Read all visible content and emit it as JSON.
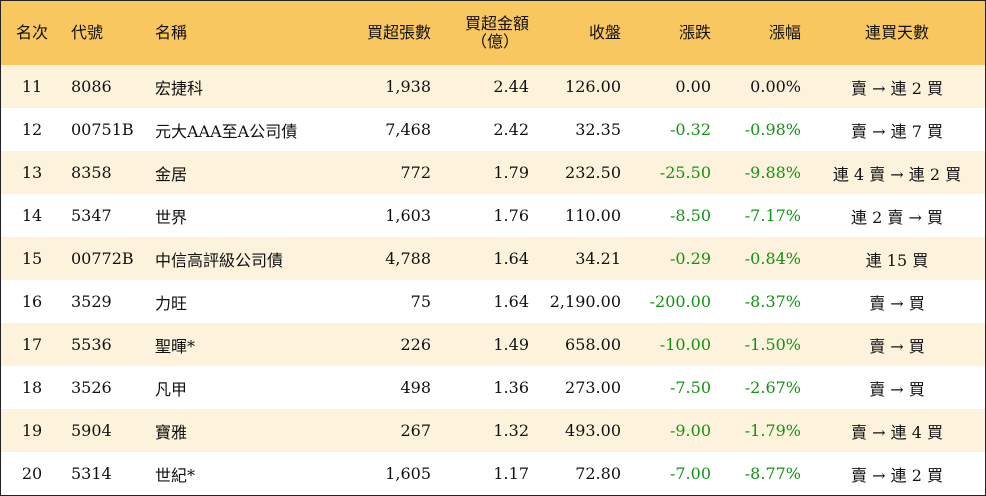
{
  "headers": {
    "rank": "名次",
    "code": "代號",
    "name": "名稱",
    "net_buy_lots": "買超張數",
    "net_buy_amount_line1": "買超金額",
    "net_buy_amount_line2": "（億）",
    "close": "收盤",
    "change": "漲跌",
    "change_pct": "漲幅",
    "consecutive_days": "連買天數"
  },
  "rows": [
    {
      "rank": "11",
      "code": "8086",
      "name": "宏捷科",
      "lots": "1,938",
      "amount": "2.44",
      "close": "126.00",
      "change": "0.00",
      "pct": "0.00%",
      "days": "賣 → 連 2 買",
      "negative": false
    },
    {
      "rank": "12",
      "code": "00751B",
      "name": "元大AAA至A公司債",
      "lots": "7,468",
      "amount": "2.42",
      "close": "32.35",
      "change": "-0.32",
      "pct": "-0.98%",
      "days": "賣 → 連 7 買",
      "negative": true
    },
    {
      "rank": "13",
      "code": "8358",
      "name": "金居",
      "lots": "772",
      "amount": "1.79",
      "close": "232.50",
      "change": "-25.50",
      "pct": "-9.88%",
      "days": "連 4 賣 → 連 2 買",
      "negative": true
    },
    {
      "rank": "14",
      "code": "5347",
      "name": "世界",
      "lots": "1,603",
      "amount": "1.76",
      "close": "110.00",
      "change": "-8.50",
      "pct": "-7.17%",
      "days": "連 2 賣 → 買",
      "negative": true
    },
    {
      "rank": "15",
      "code": "00772B",
      "name": "中信高評級公司債",
      "lots": "4,788",
      "amount": "1.64",
      "close": "34.21",
      "change": "-0.29",
      "pct": "-0.84%",
      "days": "連 15 買",
      "negative": true
    },
    {
      "rank": "16",
      "code": "3529",
      "name": "力旺",
      "lots": "75",
      "amount": "1.64",
      "close": "2,190.00",
      "change": "-200.00",
      "pct": "-8.37%",
      "days": "賣 → 買",
      "negative": true
    },
    {
      "rank": "17",
      "code": "5536",
      "name": "聖暉*",
      "lots": "226",
      "amount": "1.49",
      "close": "658.00",
      "change": "-10.00",
      "pct": "-1.50%",
      "days": "賣 → 買",
      "negative": true
    },
    {
      "rank": "18",
      "code": "3526",
      "name": "凡甲",
      "lots": "498",
      "amount": "1.36",
      "close": "273.00",
      "change": "-7.50",
      "pct": "-2.67%",
      "days": "賣 → 買",
      "negative": true
    },
    {
      "rank": "19",
      "code": "5904",
      "name": "寶雅",
      "lots": "267",
      "amount": "1.32",
      "close": "493.00",
      "change": "-9.00",
      "pct": "-1.79%",
      "days": "賣 → 連 4 買",
      "negative": true
    },
    {
      "rank": "20",
      "code": "5314",
      "name": "世紀*",
      "lots": "1,605",
      "amount": "1.17",
      "close": "72.80",
      "change": "-7.00",
      "pct": "-8.77%",
      "days": "賣 → 連 2 買",
      "negative": true
    }
  ],
  "colors": {
    "header_bg": "#f9c75f",
    "stripe_bg": "#fdf3dd",
    "negative": "#149214"
  }
}
